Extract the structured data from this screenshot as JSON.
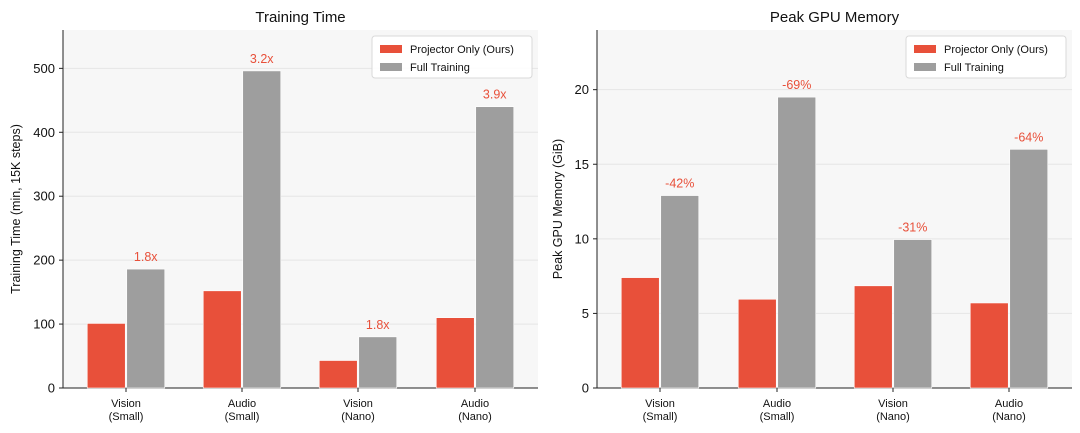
{
  "chart_data": [
    {
      "type": "bar",
      "title": "Training Time",
      "xlabel": "",
      "ylabel": "Training Time (min, 15K steps)",
      "categories": [
        [
          "Vision",
          "(Small)"
        ],
        [
          "Audio",
          "(Small)"
        ],
        [
          "Vision",
          "(Nano)"
        ],
        [
          "Audio",
          "(Nano)"
        ]
      ],
      "series": [
        {
          "name": "Projector Only (Ours)",
          "values": [
            101,
            152,
            43,
            110
          ],
          "color": "#e8503a"
        },
        {
          "name": "Full Training",
          "values": [
            186,
            496,
            80,
            440
          ],
          "color": "#9e9e9e"
        }
      ],
      "annotations": [
        "1.8x",
        "3.2x",
        "1.8x",
        "3.9x"
      ],
      "annotation_color": "#e8503a",
      "ylim": [
        0,
        560
      ],
      "yticks": [
        0,
        100,
        200,
        300,
        400,
        500
      ],
      "grid": true,
      "legend": "top-right"
    },
    {
      "type": "bar",
      "title": "Peak GPU Memory",
      "xlabel": "",
      "ylabel": "Peak GPU Memory (GiB)",
      "categories": [
        [
          "Vision",
          "(Small)"
        ],
        [
          "Audio",
          "(Small)"
        ],
        [
          "Vision",
          "(Nano)"
        ],
        [
          "Audio",
          "(Nano)"
        ]
      ],
      "series": [
        {
          "name": "Projector Only (Ours)",
          "values": [
            7.4,
            5.95,
            6.85,
            5.7
          ],
          "color": "#e8503a"
        },
        {
          "name": "Full Training",
          "values": [
            12.9,
            19.5,
            9.95,
            16.0
          ],
          "color": "#9e9e9e"
        }
      ],
      "annotations": [
        "-42%",
        "-69%",
        "-31%",
        "-64%"
      ],
      "annotation_color": "#e8503a",
      "ylim": [
        0,
        24
      ],
      "yticks": [
        0,
        5,
        10,
        15,
        20
      ],
      "grid": true,
      "legend": "top-right"
    }
  ]
}
